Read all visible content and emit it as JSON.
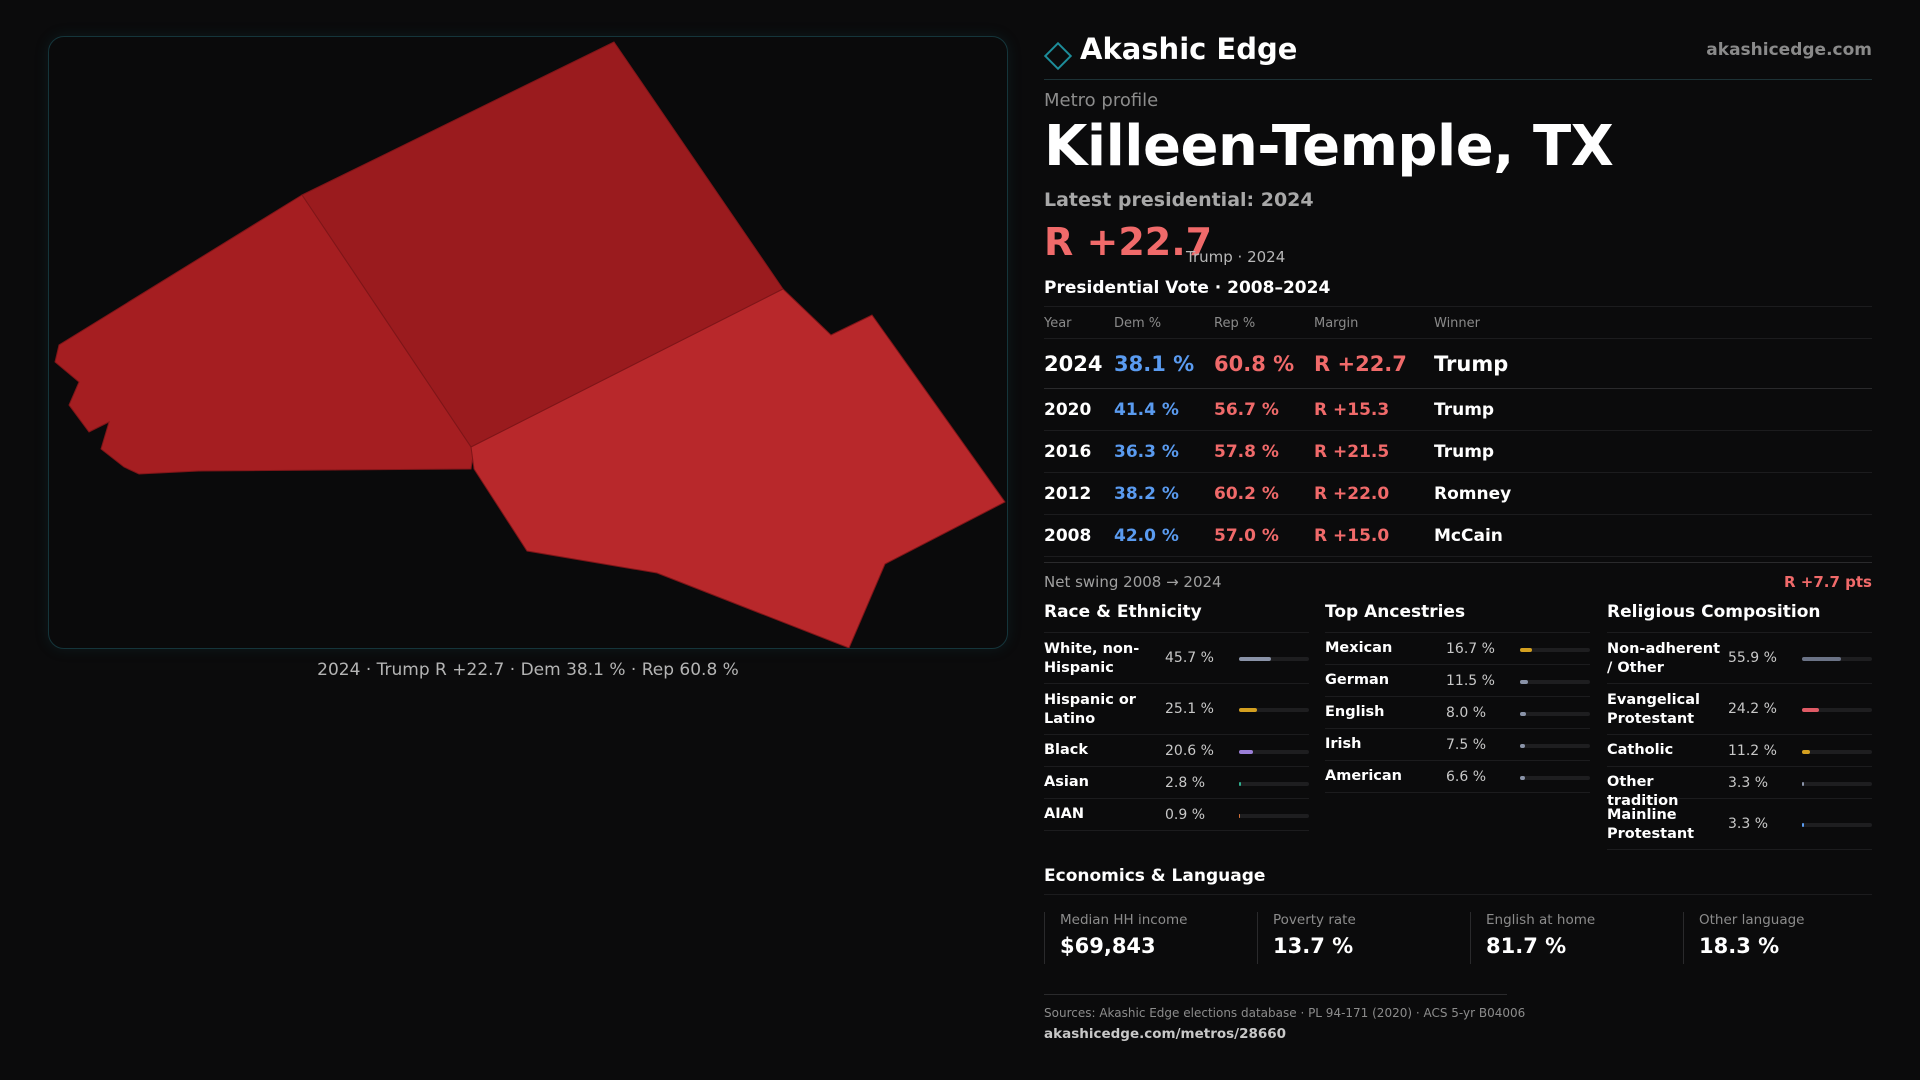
{
  "brand": {
    "name": "Akashic Edge",
    "site": "akashicedge.com",
    "logo_icon": "diamond-outline-icon",
    "accent": "#1d8d9a"
  },
  "map": {
    "caption": "2024 · Trump R +22.7 · Dem 38.1 % · Rep 60.8 %",
    "counties": [
      {
        "name": "county-north",
        "color": "#9a1b1e"
      },
      {
        "name": "county-west",
        "color": "#a51e21"
      },
      {
        "name": "county-southeast",
        "color": "#b8282b"
      }
    ]
  },
  "profile": {
    "eyebrow": "Metro profile",
    "title": "Killeen-Temple, TX",
    "latest_label": "Latest presidential: 2024",
    "margin": "R +22.7",
    "margin_sub": "Trump · 2024"
  },
  "vote_table": {
    "title": "Presidential Vote · 2008–2024",
    "headers": {
      "year": "Year",
      "dem": "Dem %",
      "rep": "Rep %",
      "margin": "Margin",
      "winner": "Winner"
    },
    "rows": [
      {
        "year": "2024",
        "dem": "38.1 %",
        "rep": "60.8 %",
        "margin": "R +22.7",
        "winner": "Trump"
      },
      {
        "year": "2020",
        "dem": "41.4 %",
        "rep": "56.7 %",
        "margin": "R +15.3",
        "winner": "Trump"
      },
      {
        "year": "2016",
        "dem": "36.3 %",
        "rep": "57.8 %",
        "margin": "R +21.5",
        "winner": "Trump"
      },
      {
        "year": "2012",
        "dem": "38.2 %",
        "rep": "60.2 %",
        "margin": "R +22.0",
        "winner": "Romney"
      },
      {
        "year": "2008",
        "dem": "42.0 %",
        "rep": "57.0 %",
        "margin": "R +15.0",
        "winner": "McCain"
      }
    ],
    "colors": {
      "dem": "#5a9bf0",
      "rep": "#f06a6a"
    }
  },
  "swing": {
    "label": "Net swing 2008 → 2024",
    "value": "R +7.7 pts"
  },
  "race": {
    "title": "Race & Ethnicity",
    "rows": [
      {
        "label": "White, non-Hispanic",
        "value": "45.7 %",
        "pct": 45.7,
        "color": "#8a93a8"
      },
      {
        "label": "Hispanic or Latino",
        "value": "25.1 %",
        "pct": 25.1,
        "color": "#d4a020"
      },
      {
        "label": "Black",
        "value": "20.6 %",
        "pct": 20.6,
        "color": "#9b7fd8"
      },
      {
        "label": "Asian",
        "value": "2.8 %",
        "pct": 2.8,
        "color": "#2fae8e"
      },
      {
        "label": "AIAN",
        "value": "0.9 %",
        "pct": 0.9,
        "color": "#d0703a"
      }
    ]
  },
  "ancestry": {
    "title": "Top Ancestries",
    "rows": [
      {
        "label": "Mexican",
        "value": "16.7 %",
        "pct": 16.7,
        "color": "#d4a020"
      },
      {
        "label": "German",
        "value": "11.5 %",
        "pct": 11.5,
        "color": "#8a93a8"
      },
      {
        "label": "English",
        "value": "8.0 %",
        "pct": 8.0,
        "color": "#8a93a8"
      },
      {
        "label": "Irish",
        "value": "7.5 %",
        "pct": 7.5,
        "color": "#8a93a8"
      },
      {
        "label": "American",
        "value": "6.6 %",
        "pct": 6.6,
        "color": "#8a93a8"
      }
    ]
  },
  "religion": {
    "title": "Religious Composition",
    "rows": [
      {
        "label": "Non-adherent / Other",
        "value": "55.9 %",
        "pct": 55.9,
        "color": "#6b7386"
      },
      {
        "label": "Evangelical Protestant",
        "value": "24.2 %",
        "pct": 24.2,
        "color": "#e05b66"
      },
      {
        "label": "Catholic",
        "value": "11.2 %",
        "pct": 11.2,
        "color": "#d4a020"
      },
      {
        "label": "Other tradition",
        "value": "3.3 %",
        "pct": 3.3,
        "color": "#8a93a8"
      },
      {
        "label": "Mainline Protestant",
        "value": "3.3 %",
        "pct": 3.3,
        "color": "#5a9bf0"
      }
    ]
  },
  "economics": {
    "title": "Economics & Language",
    "cells": [
      {
        "label": "Median HH income",
        "value": "$69,843"
      },
      {
        "label": "Poverty rate",
        "value": "13.7 %"
      },
      {
        "label": "English at home",
        "value": "81.7 %"
      },
      {
        "label": "Other language",
        "value": "18.3 %"
      }
    ]
  },
  "footer": {
    "sources": "Sources: Akashic Edge elections database · PL 94-171 (2020) · ACS 5-yr B04006",
    "url": "akashicedge.com/metros/28660"
  }
}
